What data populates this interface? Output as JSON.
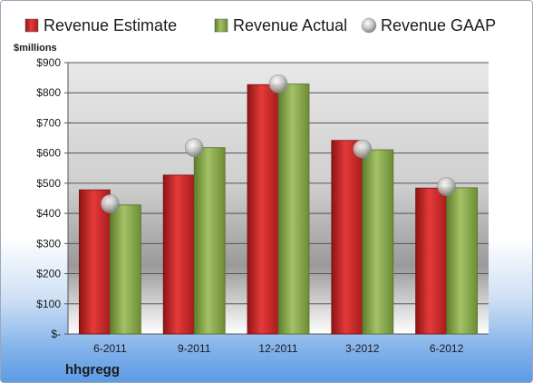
{
  "chart_data": {
    "type": "bar",
    "title": "",
    "ylabel": "$millions",
    "xlabel": "",
    "categories": [
      "6-2011",
      "9-2011",
      "12-2011",
      "3-2012",
      "6-2012"
    ],
    "series": [
      {
        "name": "Revenue Estimate",
        "kind": "bar",
        "color": "#d42a2a",
        "values": [
          478,
          527,
          827,
          642,
          484
        ]
      },
      {
        "name": "Revenue Actual",
        "kind": "bar",
        "color": "#8eae4e",
        "values": [
          428,
          618,
          829,
          611,
          485
        ]
      },
      {
        "name": "Revenue GAAP",
        "kind": "marker",
        "color": "#c7c7c7",
        "values": [
          432,
          618,
          830,
          614,
          489
        ]
      }
    ],
    "ylim": [
      0,
      900
    ],
    "yticks": [
      0,
      100,
      200,
      300,
      400,
      500,
      600,
      700,
      800,
      900
    ],
    "ytick_labels": [
      "$-",
      "$100",
      "$200",
      "$300",
      "$400",
      "$500",
      "$600",
      "$700",
      "$800",
      "$900"
    ],
    "grid": true,
    "legend_position": "top"
  },
  "company": "hhgregg"
}
